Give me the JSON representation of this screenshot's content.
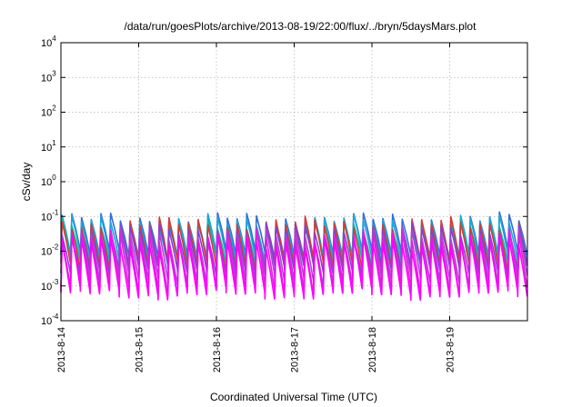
{
  "chart_data": {
    "type": "line",
    "title": "/data/run/goesPlots/archive/2013-08-19/22:00/flux/../bryn/5daysMars.plot",
    "xlabel": "Coordinated Universal Time (UTC)",
    "ylabel": "cSv/day",
    "yscale": "log",
    "ylim": [
      0.0001,
      10000
    ],
    "y_ticks": [
      {
        "value": 0.0001,
        "base": "10",
        "exp": "-4"
      },
      {
        "value": 0.001,
        "base": "10",
        "exp": "-3"
      },
      {
        "value": 0.01,
        "base": "10",
        "exp": "-2"
      },
      {
        "value": 0.1,
        "base": "10",
        "exp": "-1"
      },
      {
        "value": 1,
        "base": "10",
        "exp": "0"
      },
      {
        "value": 10,
        "base": "10",
        "exp": "1"
      },
      {
        "value": 100,
        "base": "10",
        "exp": "2"
      },
      {
        "value": 1000,
        "base": "10",
        "exp": "3"
      },
      {
        "value": 10000,
        "base": "10",
        "exp": "4"
      }
    ],
    "x_range": [
      "2013-08-14",
      "2013-08-20"
    ],
    "x_tick_labels": [
      "2013-8-14",
      "2013-8-15",
      "2013-8-16",
      "2013-8-17",
      "2013-8-18",
      "2013-8-19"
    ],
    "grid": true,
    "legend": "none",
    "cycles_per_day": 8,
    "series": [
      {
        "color": "#2f6fdc",
        "peak": 0.08,
        "trough": 0.008
      },
      {
        "color": "#1aa7d8",
        "peak": 0.07,
        "trough": 0.006
      },
      {
        "color": "#14b3a0",
        "peak": 0.05,
        "trough": 0.005
      },
      {
        "color": "#d53a3a",
        "peak": 0.06,
        "trough": 0.004
      },
      {
        "color": "#8a3fd1",
        "peak": 0.04,
        "trough": 0.003
      },
      {
        "color": "#b03fd8",
        "peak": 0.03,
        "trough": 0.0015
      },
      {
        "color": "#e020e0",
        "peak": 0.025,
        "trough": 0.0008
      },
      {
        "color": "#ff00ff",
        "peak": 0.018,
        "trough": 0.0006
      }
    ]
  }
}
